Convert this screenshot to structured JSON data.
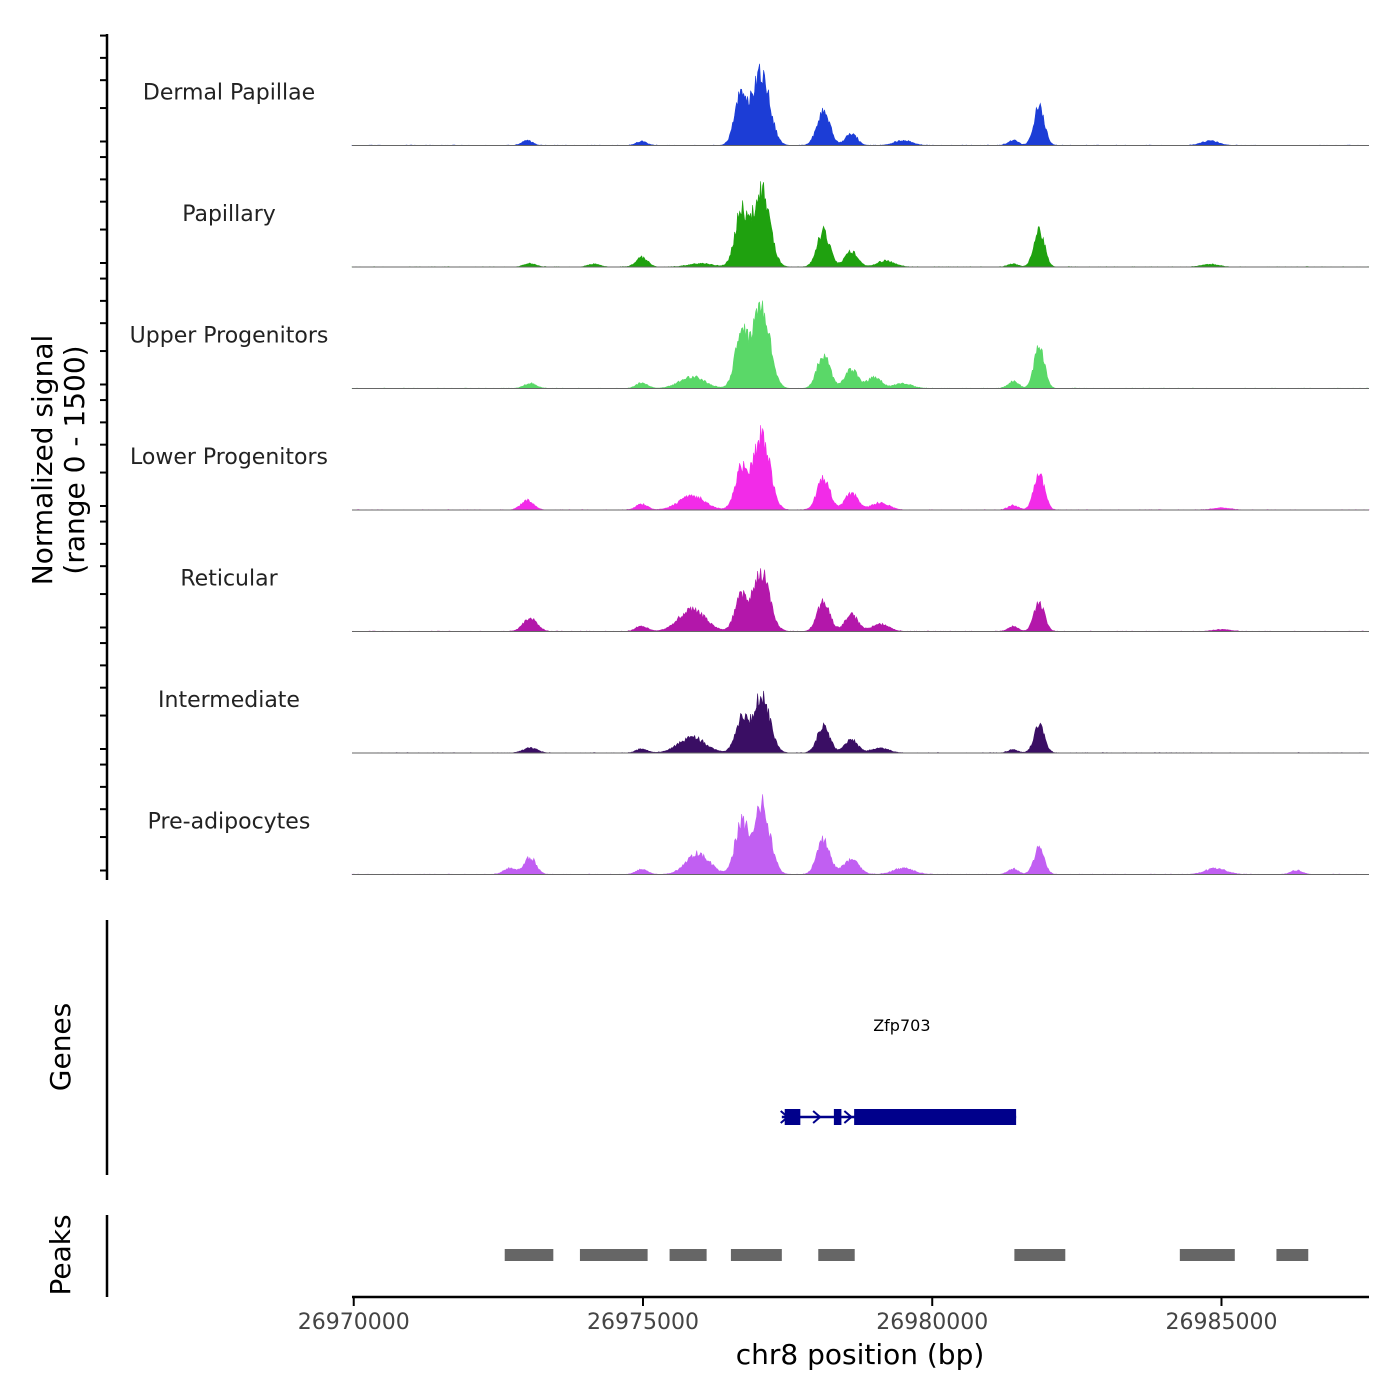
{
  "chart_data": {
    "type": "area",
    "title": "",
    "xlabel": "chr8 position (bp)",
    "ylabel_line1": "Normalized signal",
    "ylabel_line2": "(range 0 - 1500)",
    "xlim": [
      26969970,
      26987550
    ],
    "ylim": [
      0,
      1500
    ],
    "xticks": [
      {
        "value": 26970000,
        "label": "26970000"
      },
      {
        "value": 26975000,
        "label": "26975000"
      },
      {
        "value": 26980000,
        "label": "26980000"
      },
      {
        "value": 26985000,
        "label": "26985000"
      }
    ],
    "series": [
      {
        "name": "Dermal Papillae",
        "color": "#1c3dd6",
        "peaks": [
          [
            26973000,
            100,
            90
          ],
          [
            26974980,
            80,
            90
          ],
          [
            26976700,
            990,
            110
          ],
          [
            26977050,
            1470,
            140
          ],
          [
            26978120,
            700,
            110
          ],
          [
            26978600,
            240,
            100
          ],
          [
            26979500,
            100,
            150
          ],
          [
            26981850,
            780,
            90
          ],
          [
            26981400,
            100,
            90
          ],
          [
            26984800,
            90,
            150
          ]
        ]
      },
      {
        "name": "Papillary",
        "color": "#1fa10f",
        "peaks": [
          [
            26973050,
            70,
            100
          ],
          [
            26974150,
            60,
            100
          ],
          [
            26974980,
            190,
            100
          ],
          [
            26976000,
            70,
            200
          ],
          [
            26976700,
            1080,
            110
          ],
          [
            26977050,
            1540,
            140
          ],
          [
            26978120,
            700,
            110
          ],
          [
            26978600,
            300,
            110
          ],
          [
            26979200,
            120,
            150
          ],
          [
            26981850,
            740,
            90
          ],
          [
            26981400,
            60,
            90
          ],
          [
            26984800,
            50,
            150
          ]
        ]
      },
      {
        "name": "Upper Progenitors",
        "color": "#5ad868",
        "peaks": [
          [
            26973050,
            100,
            110
          ],
          [
            26974980,
            110,
            100
          ],
          [
            26975850,
            230,
            220
          ],
          [
            26976700,
            1080,
            110
          ],
          [
            26977050,
            1690,
            140
          ],
          [
            26978120,
            680,
            110
          ],
          [
            26978600,
            380,
            110
          ],
          [
            26979000,
            230,
            120
          ],
          [
            26979500,
            100,
            150
          ],
          [
            26981850,
            810,
            90
          ],
          [
            26981400,
            140,
            90
          ]
        ]
      },
      {
        "name": "Lower Progenitors",
        "color": "#f22be8",
        "peaks": [
          [
            26973000,
            190,
            110
          ],
          [
            26974980,
            110,
            100
          ],
          [
            26975850,
            280,
            220
          ],
          [
            26976700,
            810,
            110
          ],
          [
            26977050,
            1460,
            140
          ],
          [
            26978120,
            620,
            110
          ],
          [
            26978600,
            330,
            110
          ],
          [
            26979100,
            140,
            150
          ],
          [
            26981850,
            720,
            90
          ],
          [
            26981400,
            90,
            90
          ],
          [
            26985000,
            40,
            150
          ]
        ]
      },
      {
        "name": "Reticular",
        "color": "#b317aa",
        "peaks": [
          [
            26973050,
            260,
            120
          ],
          [
            26974980,
            110,
            100
          ],
          [
            26975850,
            430,
            230
          ],
          [
            26976700,
            680,
            110
          ],
          [
            26977050,
            1140,
            140
          ],
          [
            26978120,
            580,
            110
          ],
          [
            26978600,
            340,
            110
          ],
          [
            26979100,
            140,
            150
          ],
          [
            26981850,
            590,
            90
          ],
          [
            26981400,
            100,
            90
          ],
          [
            26985000,
            40,
            150
          ]
        ]
      },
      {
        "name": "Intermediate",
        "color": "#3a0e64",
        "peaks": [
          [
            26973050,
            100,
            120
          ],
          [
            26974980,
            80,
            100
          ],
          [
            26975850,
            310,
            230
          ],
          [
            26976700,
            640,
            110
          ],
          [
            26977050,
            1130,
            140
          ],
          [
            26978120,
            510,
            110
          ],
          [
            26978600,
            260,
            110
          ],
          [
            26979100,
            100,
            150
          ],
          [
            26981850,
            530,
            90
          ],
          [
            26981400,
            60,
            90
          ]
        ]
      },
      {
        "name": "Pre-adipocytes",
        "color": "#c15ff2",
        "peaks": [
          [
            26972700,
            120,
            110
          ],
          [
            26973050,
            340,
            100
          ],
          [
            26974980,
            100,
            100
          ],
          [
            26975950,
            420,
            200
          ],
          [
            26976700,
            1000,
            110
          ],
          [
            26977050,
            1390,
            140
          ],
          [
            26978120,
            700,
            110
          ],
          [
            26978600,
            300,
            130
          ],
          [
            26979500,
            120,
            180
          ],
          [
            26981850,
            530,
            90
          ],
          [
            26981400,
            110,
            90
          ],
          [
            26984900,
            120,
            180
          ],
          [
            26986300,
            80,
            100
          ]
        ]
      }
    ],
    "genes_track": {
      "label": "Genes",
      "gene": "Zfp703",
      "start": 26977400,
      "end": 26981450,
      "strand": "+",
      "color": "#00008b",
      "exons": [
        [
          26977450,
          26977720
        ],
        [
          26978300,
          26978430
        ],
        [
          26978650,
          26981450
        ]
      ]
    },
    "peaks_track": {
      "label": "Peaks",
      "color": "#666666",
      "regions": [
        [
          26972610,
          26973450
        ],
        [
          26973910,
          26975080
        ],
        [
          26975460,
          26976100
        ],
        [
          26976520,
          26977400
        ],
        [
          26978030,
          26978660
        ],
        [
          26981420,
          26982300
        ],
        [
          26984280,
          26985230
        ],
        [
          26985950,
          26986500
        ]
      ]
    }
  }
}
